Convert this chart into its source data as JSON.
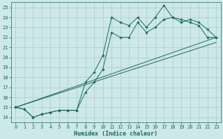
{
  "xlabel": "Humidex (Indice chaleur)",
  "background_color": "#cce8e8",
  "grid_color": "#b0c8c8",
  "line_color": "#1a6b5a",
  "xlim": [
    -0.5,
    23.5
  ],
  "ylim": [
    13.5,
    25.5
  ],
  "xticks": [
    0,
    1,
    2,
    3,
    4,
    5,
    6,
    7,
    8,
    9,
    10,
    11,
    12,
    13,
    14,
    15,
    16,
    17,
    18,
    19,
    20,
    21,
    22,
    23
  ],
  "yticks": [
    14,
    15,
    16,
    17,
    18,
    19,
    20,
    21,
    22,
    23,
    24,
    25
  ],
  "series1_x": [
    0,
    1,
    2,
    3,
    4,
    5,
    6,
    7,
    8,
    9,
    10,
    11,
    12,
    13,
    14,
    15,
    16,
    17,
    18,
    19,
    20,
    21,
    22,
    23
  ],
  "series1_y": [
    15.0,
    14.8,
    14.0,
    14.3,
    14.5,
    14.7,
    14.7,
    14.7,
    17.5,
    18.5,
    20.2,
    24.0,
    23.5,
    23.2,
    24.0,
    23.0,
    24.0,
    25.2,
    24.0,
    23.8,
    23.5,
    23.2,
    22.0,
    22.0
  ],
  "series2_x": [
    0,
    1,
    2,
    3,
    4,
    5,
    6,
    7,
    8,
    9,
    10,
    11,
    12,
    13,
    14,
    15,
    16,
    17,
    18,
    19,
    20,
    21,
    22,
    23
  ],
  "series2_y": [
    15.0,
    14.8,
    14.0,
    14.3,
    14.5,
    14.7,
    14.7,
    14.7,
    16.5,
    17.5,
    18.8,
    22.5,
    22.0,
    22.0,
    23.5,
    22.5,
    23.0,
    23.8,
    24.0,
    23.5,
    23.8,
    23.5,
    22.8,
    22.0
  ],
  "line3_x": [
    0,
    23
  ],
  "line3_y": [
    15.0,
    22.0
  ],
  "line4_x": [
    0,
    23
  ],
  "line4_y": [
    15.0,
    21.5
  ]
}
